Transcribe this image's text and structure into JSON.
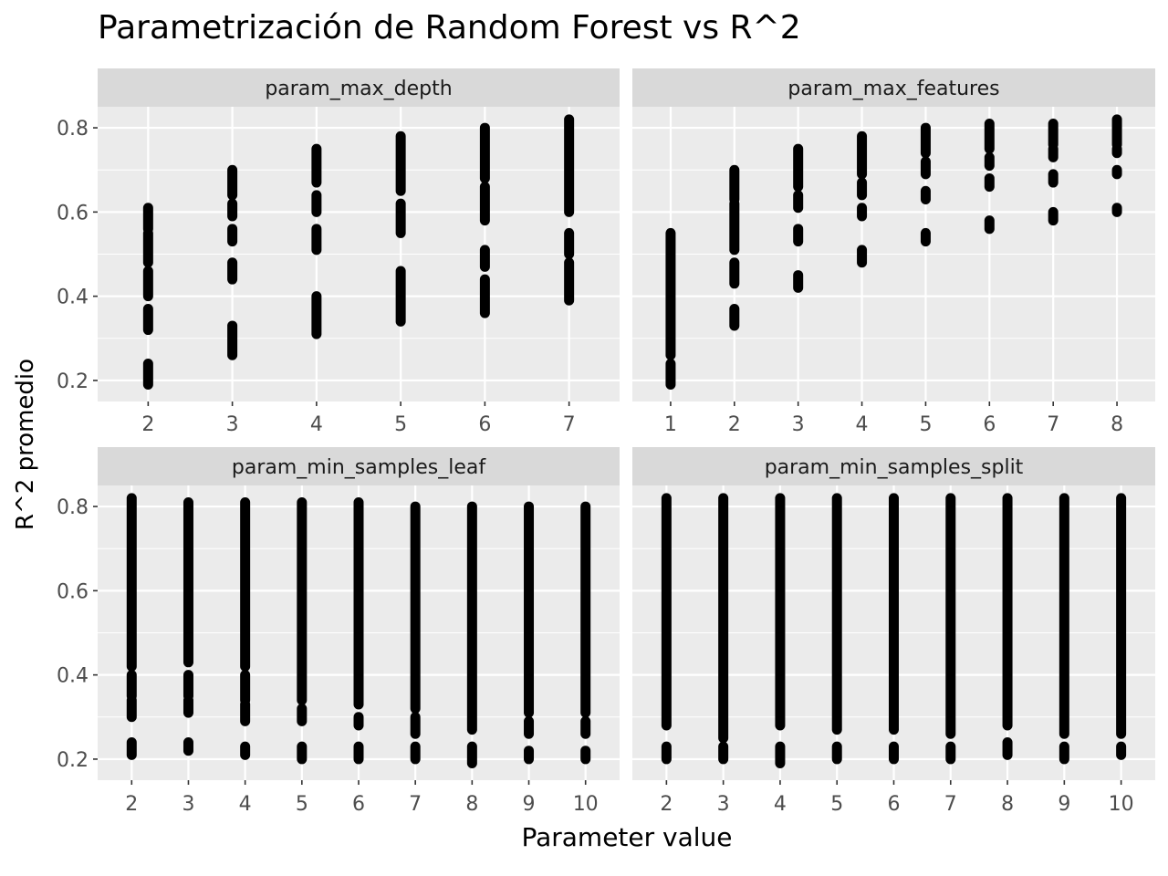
{
  "chart_data": {
    "type": "scatter",
    "title": "Parametrización de Random Forest vs R^2",
    "xlabel": "Parameter value",
    "ylabel": "R^2 promedio",
    "y_ticks": [
      "0.2",
      "0.4",
      "0.6",
      "0.8"
    ],
    "ylim": [
      0.15,
      0.85
    ],
    "grid": true,
    "facets": [
      {
        "name": "param_max_depth",
        "x_ticks": [
          "2",
          "3",
          "4",
          "5",
          "6",
          "7"
        ],
        "xlim": [
          1.4,
          7.6
        ],
        "points": [
          {
            "x": 2,
            "ranges": [
              [
                0.19,
                0.24
              ],
              [
                0.32,
                0.37
              ],
              [
                0.4,
                0.46
              ],
              [
                0.48,
                0.55
              ],
              [
                0.56,
                0.61
              ]
            ]
          },
          {
            "x": 3,
            "ranges": [
              [
                0.26,
                0.33
              ],
              [
                0.44,
                0.48
              ],
              [
                0.53,
                0.56
              ],
              [
                0.59,
                0.62
              ],
              [
                0.64,
                0.7
              ]
            ]
          },
          {
            "x": 4,
            "ranges": [
              [
                0.31,
                0.4
              ],
              [
                0.51,
                0.56
              ],
              [
                0.6,
                0.64
              ],
              [
                0.67,
                0.75
              ]
            ]
          },
          {
            "x": 5,
            "ranges": [
              [
                0.34,
                0.46
              ],
              [
                0.55,
                0.62
              ],
              [
                0.65,
                0.78
              ]
            ]
          },
          {
            "x": 6,
            "ranges": [
              [
                0.36,
                0.44
              ],
              [
                0.47,
                0.51
              ],
              [
                0.58,
                0.66
              ],
              [
                0.68,
                0.8
              ]
            ]
          },
          {
            "x": 7,
            "ranges": [
              [
                0.39,
                0.48
              ],
              [
                0.5,
                0.55
              ],
              [
                0.6,
                0.82
              ]
            ]
          }
        ]
      },
      {
        "name": "param_max_features",
        "x_ticks": [
          "1",
          "2",
          "3",
          "4",
          "5",
          "6",
          "7",
          "8"
        ],
        "xlim": [
          0.4,
          8.6
        ],
        "points": [
          {
            "x": 1,
            "ranges": [
              [
                0.19,
                0.24
              ],
              [
                0.26,
                0.55
              ]
            ]
          },
          {
            "x": 2,
            "ranges": [
              [
                0.33,
                0.37
              ],
              [
                0.43,
                0.48
              ],
              [
                0.51,
                0.62
              ],
              [
                0.63,
                0.7
              ]
            ]
          },
          {
            "x": 3,
            "ranges": [
              [
                0.42,
                0.45
              ],
              [
                0.53,
                0.56
              ],
              [
                0.61,
                0.64
              ],
              [
                0.66,
                0.75
              ]
            ]
          },
          {
            "x": 4,
            "ranges": [
              [
                0.48,
                0.51
              ],
              [
                0.59,
                0.61
              ],
              [
                0.64,
                0.67
              ],
              [
                0.69,
                0.78
              ]
            ]
          },
          {
            "x": 5,
            "ranges": [
              [
                0.53,
                0.55
              ],
              [
                0.63,
                0.65
              ],
              [
                0.69,
                0.72
              ],
              [
                0.74,
                0.8
              ]
            ]
          },
          {
            "x": 6,
            "ranges": [
              [
                0.56,
                0.58
              ],
              [
                0.66,
                0.68
              ],
              [
                0.71,
                0.73
              ],
              [
                0.75,
                0.81
              ]
            ]
          },
          {
            "x": 7,
            "ranges": [
              [
                0.58,
                0.6
              ],
              [
                0.67,
                0.69
              ],
              [
                0.73,
                0.75
              ],
              [
                0.76,
                0.81
              ]
            ]
          },
          {
            "x": 8,
            "ranges": [
              [
                0.6,
                0.61
              ],
              [
                0.69,
                0.7
              ],
              [
                0.74,
                0.75
              ],
              [
                0.76,
                0.82
              ]
            ]
          }
        ]
      },
      {
        "name": "param_min_samples_leaf",
        "x_ticks": [
          "2",
          "3",
          "4",
          "5",
          "6",
          "7",
          "8",
          "9",
          "10"
        ],
        "xlim": [
          1.4,
          10.6
        ],
        "points": [
          {
            "x": 2,
            "ranges": [
              [
                0.21,
                0.24
              ],
              [
                0.3,
                0.34
              ],
              [
                0.35,
                0.4
              ],
              [
                0.42,
                0.82
              ]
            ]
          },
          {
            "x": 3,
            "ranges": [
              [
                0.22,
                0.24
              ],
              [
                0.31,
                0.34
              ],
              [
                0.35,
                0.4
              ],
              [
                0.43,
                0.81
              ]
            ]
          },
          {
            "x": 4,
            "ranges": [
              [
                0.21,
                0.23
              ],
              [
                0.29,
                0.33
              ],
              [
                0.34,
                0.4
              ],
              [
                0.42,
                0.81
              ]
            ]
          },
          {
            "x": 5,
            "ranges": [
              [
                0.2,
                0.23
              ],
              [
                0.29,
                0.32
              ],
              [
                0.34,
                0.81
              ]
            ]
          },
          {
            "x": 6,
            "ranges": [
              [
                0.2,
                0.23
              ],
              [
                0.28,
                0.3
              ],
              [
                0.33,
                0.81
              ]
            ]
          },
          {
            "x": 7,
            "ranges": [
              [
                0.2,
                0.23
              ],
              [
                0.26,
                0.3
              ],
              [
                0.32,
                0.8
              ]
            ]
          },
          {
            "x": 8,
            "ranges": [
              [
                0.19,
                0.23
              ],
              [
                0.27,
                0.8
              ]
            ]
          },
          {
            "x": 9,
            "ranges": [
              [
                0.2,
                0.22
              ],
              [
                0.26,
                0.29
              ],
              [
                0.31,
                0.8
              ]
            ]
          },
          {
            "x": 10,
            "ranges": [
              [
                0.2,
                0.22
              ],
              [
                0.26,
                0.29
              ],
              [
                0.31,
                0.8
              ]
            ]
          }
        ]
      },
      {
        "name": "param_min_samples_split",
        "x_ticks": [
          "2",
          "3",
          "4",
          "5",
          "6",
          "7",
          "8",
          "9",
          "10"
        ],
        "xlim": [
          1.4,
          10.6
        ],
        "points": [
          {
            "x": 2,
            "ranges": [
              [
                0.2,
                0.23
              ],
              [
                0.28,
                0.82
              ]
            ]
          },
          {
            "x": 3,
            "ranges": [
              [
                0.2,
                0.23
              ],
              [
                0.25,
                0.82
              ]
            ]
          },
          {
            "x": 4,
            "ranges": [
              [
                0.19,
                0.23
              ],
              [
                0.28,
                0.82
              ]
            ]
          },
          {
            "x": 5,
            "ranges": [
              [
                0.2,
                0.23
              ],
              [
                0.27,
                0.82
              ]
            ]
          },
          {
            "x": 6,
            "ranges": [
              [
                0.2,
                0.23
              ],
              [
                0.27,
                0.82
              ]
            ]
          },
          {
            "x": 7,
            "ranges": [
              [
                0.2,
                0.23
              ],
              [
                0.26,
                0.82
              ]
            ]
          },
          {
            "x": 8,
            "ranges": [
              [
                0.21,
                0.24
              ],
              [
                0.28,
                0.82
              ]
            ]
          },
          {
            "x": 9,
            "ranges": [
              [
                0.2,
                0.23
              ],
              [
                0.26,
                0.82
              ]
            ]
          },
          {
            "x": 10,
            "ranges": [
              [
                0.21,
                0.23
              ],
              [
                0.26,
                0.82
              ]
            ]
          }
        ]
      }
    ]
  }
}
